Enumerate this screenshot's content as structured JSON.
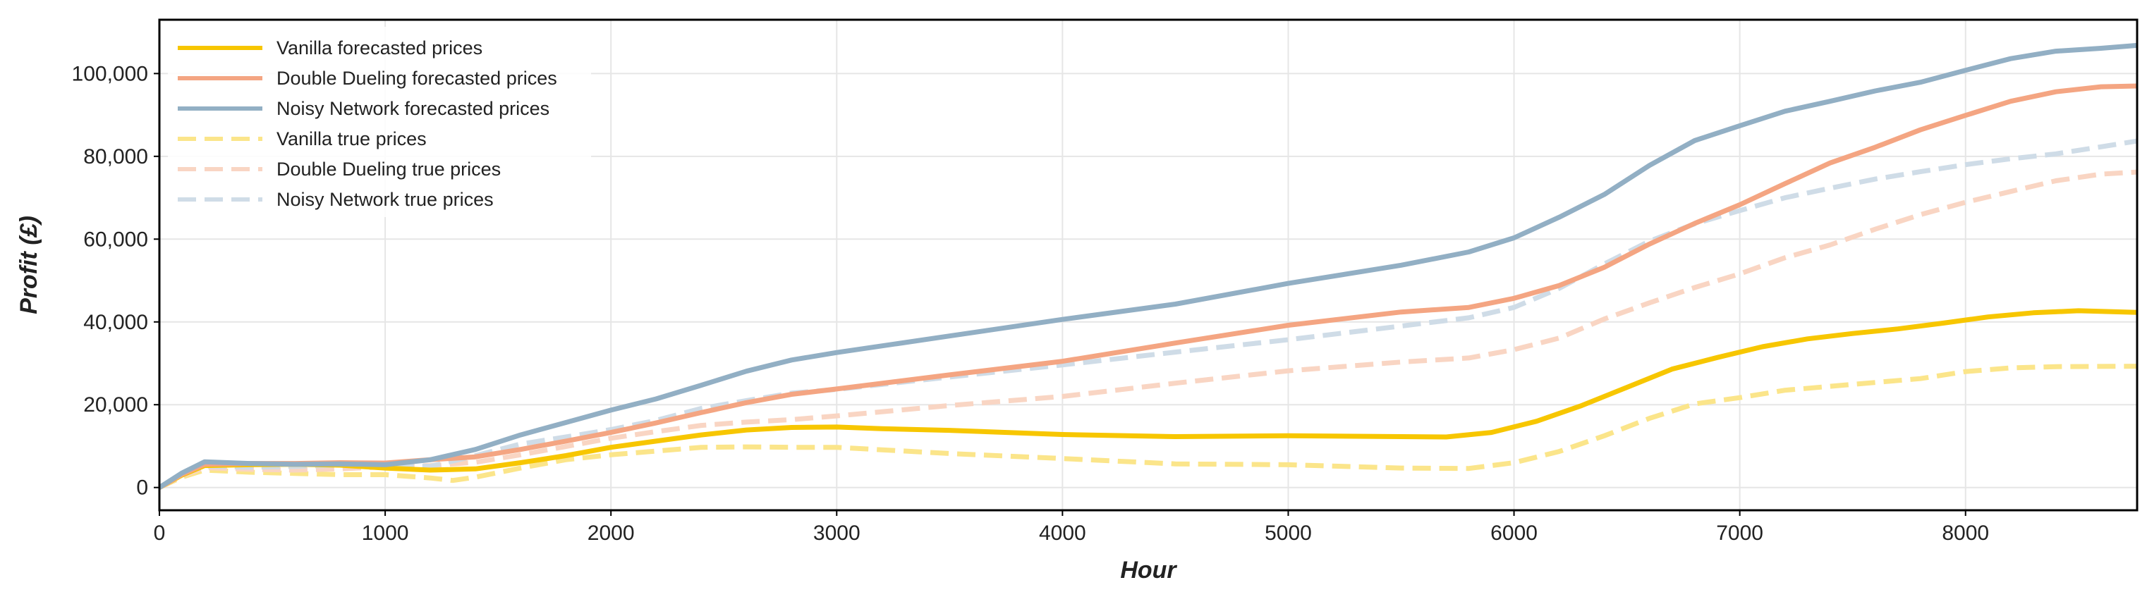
{
  "chart_data": {
    "type": "line",
    "title": "",
    "xlabel": "Hour",
    "ylabel": "Profit (£)",
    "xlim": [
      0,
      8760
    ],
    "ylim": [
      -5500,
      113000
    ],
    "xticks": [
      0,
      1000,
      2000,
      3000,
      4000,
      5000,
      6000,
      7000,
      8000
    ],
    "xtick_labels": [
      "0",
      "1000",
      "2000",
      "3000",
      "4000",
      "5000",
      "6000",
      "7000",
      "8000"
    ],
    "yticks": [
      0,
      20000,
      40000,
      60000,
      80000,
      100000
    ],
    "ytick_labels": [
      "0",
      "20,000",
      "40,000",
      "60,000",
      "80,000",
      "100,000"
    ],
    "grid": true,
    "legend_position": "top-left",
    "series": [
      {
        "name": "Vanilla forecasted prices",
        "color": "#f7c600",
        "style": "solid",
        "x": [
          0,
          100,
          200,
          400,
          600,
          800,
          1000,
          1200,
          1400,
          1600,
          1800,
          2000,
          2200,
          2400,
          2600,
          2800,
          3000,
          3200,
          3500,
          4000,
          4500,
          5000,
          5500,
          5700,
          5900,
          6100,
          6300,
          6500,
          6700,
          6900,
          7100,
          7300,
          7500,
          7700,
          7900,
          8100,
          8300,
          8500,
          8760
        ],
        "y": [
          0,
          3000,
          5300,
          5500,
          5600,
          5400,
          4700,
          4200,
          4500,
          6000,
          7700,
          9700,
          11200,
          12700,
          13900,
          14500,
          14600,
          14200,
          13800,
          12800,
          12300,
          12500,
          12300,
          12200,
          13300,
          16000,
          19800,
          24200,
          28600,
          31400,
          34000,
          35900,
          37200,
          38300,
          39700,
          41200,
          42200,
          42700,
          42300
        ]
      },
      {
        "name": "Double Dueling forecasted prices",
        "color": "#f4a582",
        "style": "solid",
        "x": [
          0,
          100,
          200,
          400,
          600,
          800,
          1000,
          1200,
          1400,
          1600,
          1800,
          2000,
          2200,
          2400,
          2600,
          2800,
          3000,
          3500,
          4000,
          4500,
          5000,
          5500,
          5800,
          6000,
          6200,
          6400,
          6600,
          6800,
          7000,
          7200,
          7400,
          7600,
          7800,
          8000,
          8200,
          8400,
          8600,
          8760
        ],
        "y": [
          0,
          3200,
          5600,
          5800,
          5800,
          6000,
          5900,
          6700,
          7400,
          9200,
          11200,
          13300,
          15600,
          18100,
          20500,
          22500,
          23800,
          27200,
          30500,
          34900,
          39200,
          42400,
          43500,
          45700,
          48800,
          53200,
          58800,
          63800,
          68300,
          73400,
          78400,
          82200,
          86400,
          89900,
          93300,
          95600,
          96800,
          97000
        ]
      },
      {
        "name": "Noisy Network forecasted prices",
        "color": "#92afc4",
        "style": "solid",
        "x": [
          0,
          100,
          200,
          400,
          600,
          800,
          1000,
          1200,
          1400,
          1600,
          1800,
          2000,
          2200,
          2400,
          2600,
          2800,
          3000,
          3500,
          4000,
          4500,
          5000,
          5500,
          5800,
          6000,
          6200,
          6400,
          6600,
          6800,
          7000,
          7200,
          7400,
          7600,
          7800,
          8000,
          8200,
          8400,
          8600,
          8760
        ],
        "y": [
          0,
          3500,
          6200,
          5800,
          5600,
          5700,
          5500,
          6700,
          9200,
          12700,
          15700,
          18700,
          21400,
          24700,
          28100,
          30800,
          32600,
          36600,
          40600,
          44300,
          49300,
          53700,
          56900,
          60300,
          65300,
          70800,
          77800,
          83800,
          87400,
          90900,
          93300,
          95800,
          97900,
          100800,
          103600,
          105400,
          106100,
          106800
        ]
      },
      {
        "name": "Vanilla true prices",
        "color": "#fbe58a",
        "style": "dashed",
        "x": [
          0,
          100,
          200,
          400,
          600,
          800,
          1000,
          1200,
          1300,
          1400,
          1600,
          1800,
          2000,
          2200,
          2400,
          2600,
          2800,
          3000,
          3500,
          4000,
          4500,
          5000,
          5500,
          5800,
          6000,
          6200,
          6400,
          6600,
          6800,
          7000,
          7200,
          7500,
          7800,
          8000,
          8200,
          8400,
          8760
        ],
        "y": [
          0,
          2500,
          4200,
          3700,
          3400,
          3100,
          3100,
          2300,
          1700,
          2500,
          4700,
          6700,
          7900,
          8800,
          9700,
          9800,
          9700,
          9700,
          8200,
          7000,
          5700,
          5500,
          4700,
          4600,
          6000,
          8700,
          12500,
          16700,
          20200,
          21700,
          23500,
          24900,
          26300,
          28000,
          28900,
          29200,
          29300
        ]
      },
      {
        "name": "Double Dueling true prices",
        "color": "#f9d5c3",
        "style": "dashed",
        "x": [
          0,
          100,
          200,
          400,
          600,
          800,
          1000,
          1200,
          1400,
          1600,
          1800,
          2000,
          2200,
          2400,
          2600,
          2800,
          3000,
          3500,
          4000,
          4500,
          5000,
          5500,
          5800,
          6000,
          6200,
          6400,
          6600,
          6800,
          7000,
          7200,
          7400,
          7600,
          7800,
          8000,
          8200,
          8400,
          8600,
          8760
        ],
        "y": [
          0,
          2800,
          4800,
          4400,
          4200,
          4500,
          5000,
          5300,
          6100,
          7900,
          9900,
          11900,
          13500,
          15000,
          15800,
          16400,
          17300,
          19800,
          22000,
          25200,
          28200,
          30300,
          31300,
          33300,
          36100,
          40700,
          44600,
          48300,
          51600,
          55500,
          58600,
          62400,
          65900,
          68900,
          71500,
          74100,
          75700,
          76200
        ]
      },
      {
        "name": "Noisy Network true prices",
        "color": "#cfdce7",
        "style": "dashed",
        "x": [
          0,
          100,
          200,
          400,
          600,
          800,
          1000,
          1200,
          1400,
          1600,
          1800,
          2000,
          2200,
          2400,
          2600,
          2800,
          3000,
          3500,
          4000,
          4500,
          5000,
          5500,
          5800,
          6000,
          6200,
          6400,
          6600,
          6800,
          7000,
          7200,
          7400,
          7600,
          7800,
          8000,
          8200,
          8400,
          8600,
          8760
        ],
        "y": [
          0,
          3200,
          5200,
          4900,
          5100,
          5400,
          5300,
          5100,
          7700,
          10500,
          12200,
          14000,
          16200,
          19100,
          21000,
          22800,
          23700,
          26700,
          29600,
          32700,
          35700,
          39000,
          41000,
          43500,
          48100,
          54000,
          59500,
          63700,
          66900,
          70000,
          72300,
          74500,
          76300,
          78000,
          79400,
          80600,
          82300,
          83700
        ]
      }
    ]
  }
}
